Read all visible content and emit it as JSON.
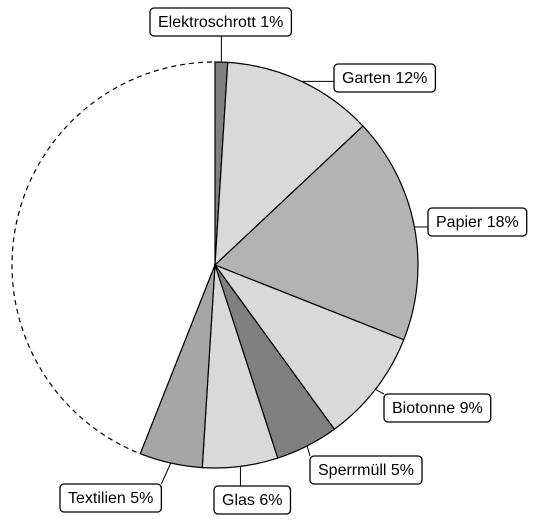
{
  "chart_data": {
    "type": "pie",
    "title": "",
    "slices": [
      {
        "label": "Elektroschrott 1%",
        "value": 1,
        "color": "#808080"
      },
      {
        "label": "Garten 12%",
        "value": 12,
        "color": "#d9d9d9"
      },
      {
        "label": "Papier 18%",
        "value": 18,
        "color": "#b3b3b3"
      },
      {
        "label": "Biotonne 9%",
        "value": 9,
        "color": "#d9d9d9"
      },
      {
        "label": "Sperrmüll 5%",
        "value": 5,
        "color": "#808080"
      },
      {
        "label": "Glas 6%",
        "value": 6,
        "color": "#d9d9d9"
      },
      {
        "label": "Textilien 5%",
        "value": 5,
        "color": "#a6a6a6"
      }
    ],
    "remainder": {
      "value": 44,
      "style": "dashed-outline",
      "labelled": false
    },
    "total": 100,
    "start_angle": "12 o'clock",
    "direction": "clockwise"
  }
}
